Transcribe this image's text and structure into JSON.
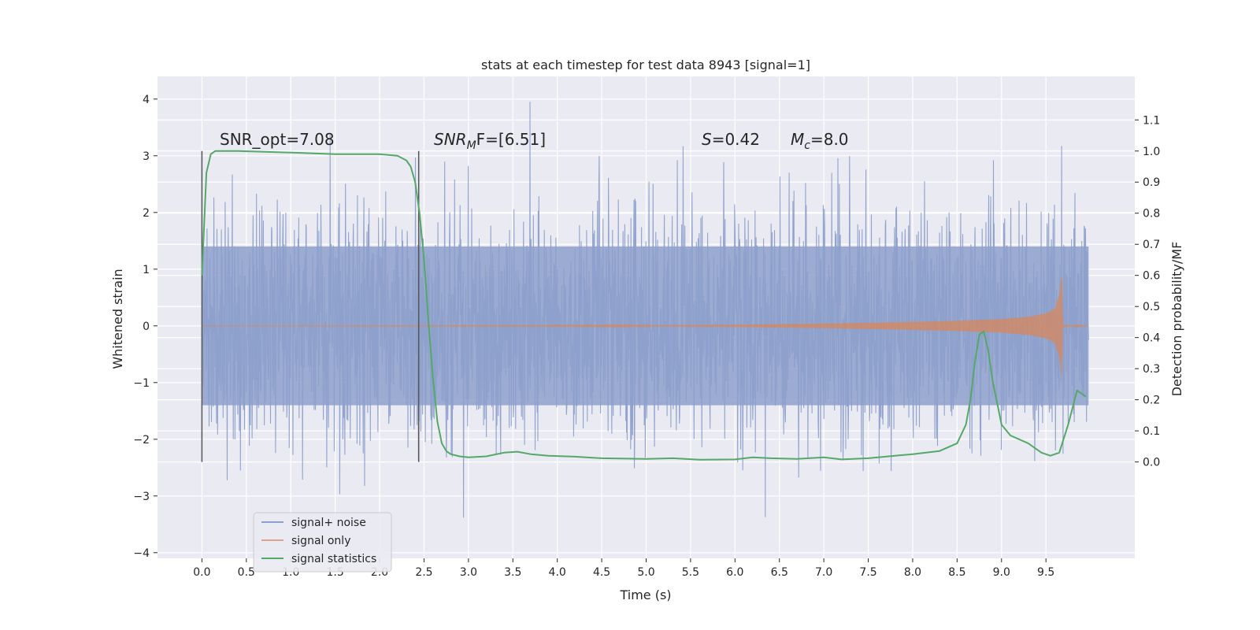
{
  "chart_data": {
    "type": "line",
    "title": "stats at each timestep for test data 8943 [signal=1]",
    "xlabel": "Time (s)",
    "ylabel": "Whitened strain",
    "ylabel_right": "Detection probability/MF",
    "xlim": [
      -0.5,
      10.5
    ],
    "ylim": [
      -4.1,
      4.4
    ],
    "ylim_right": [
      -0.31,
      1.24
    ],
    "x_ticks": [
      "0.0",
      "0.5",
      "1.0",
      "1.5",
      "2.0",
      "2.5",
      "3.0",
      "3.5",
      "4.0",
      "4.5",
      "5.0",
      "5.5",
      "6.0",
      "6.5",
      "7.0",
      "7.5",
      "8.0",
      "8.5",
      "9.0",
      "9.5"
    ],
    "y_ticks": [
      "4",
      "3",
      "2",
      "1",
      "0",
      "−1",
      "−2",
      "−3",
      "−4"
    ],
    "y_right_ticks": [
      "1.1",
      "1.0",
      "0.9",
      "0.8",
      "0.7",
      "0.6",
      "0.5",
      "0.4",
      "0.3",
      "0.2",
      "0.1",
      "0.0"
    ],
    "grid": true,
    "legend_position": "lower-left",
    "annotations": {
      "snr_opt": "SNR_opt=7.08",
      "snr_mf_main": "SNR",
      "snr_mf_sub": "M",
      "snr_mf_rest": "F=[6.51]",
      "s_main": "S",
      "s_rest": "=0.42",
      "mc_main": "M",
      "mc_sub": "c",
      "mc_rest": "=8.0"
    },
    "vlines_x": [
      0.0,
      2.44
    ],
    "noise": {
      "core_amplitude": 1.4,
      "max_spike": 4.05,
      "min_spike": -3.7,
      "x_start": 0.0,
      "x_end": 9.98
    },
    "signal_envelope": {
      "x": [
        0.0,
        4.0,
        5.0,
        6.0,
        7.0,
        8.0,
        8.5,
        9.0,
        9.3,
        9.5,
        9.6,
        9.65,
        9.68,
        9.69,
        9.98
      ],
      "amp": [
        0.0,
        0.005,
        0.01,
        0.02,
        0.04,
        0.07,
        0.09,
        0.12,
        0.16,
        0.22,
        0.3,
        0.55,
        0.9,
        0.02,
        0.0
      ]
    },
    "series": [
      {
        "name": "signal statistics",
        "axis": "right",
        "x": [
          0.0,
          0.05,
          0.1,
          0.15,
          0.2,
          0.4,
          1.0,
          1.5,
          2.0,
          2.2,
          2.3,
          2.35,
          2.4,
          2.45,
          2.5,
          2.55,
          2.6,
          2.65,
          2.7,
          2.75,
          2.8,
          2.9,
          3.0,
          3.2,
          3.4,
          3.55,
          3.7,
          3.9,
          4.2,
          4.5,
          5.0,
          5.3,
          5.6,
          6.0,
          6.2,
          6.4,
          6.7,
          7.0,
          7.2,
          7.5,
          7.8,
          8.0,
          8.3,
          8.5,
          8.6,
          8.65,
          8.7,
          8.75,
          8.8,
          8.85,
          8.9,
          9.0,
          9.1,
          9.3,
          9.45,
          9.55,
          9.65,
          9.75,
          9.85,
          9.95
        ],
        "values": [
          0.6,
          0.93,
          0.99,
          1.0,
          1.0,
          1.0,
          0.995,
          0.99,
          0.99,
          0.985,
          0.97,
          0.95,
          0.9,
          0.8,
          0.65,
          0.45,
          0.27,
          0.13,
          0.06,
          0.035,
          0.025,
          0.018,
          0.015,
          0.018,
          0.03,
          0.033,
          0.025,
          0.02,
          0.017,
          0.012,
          0.01,
          0.012,
          0.007,
          0.008,
          0.015,
          0.012,
          0.01,
          0.015,
          0.008,
          0.012,
          0.02,
          0.025,
          0.035,
          0.06,
          0.12,
          0.2,
          0.32,
          0.41,
          0.42,
          0.36,
          0.26,
          0.12,
          0.085,
          0.06,
          0.03,
          0.02,
          0.03,
          0.12,
          0.23,
          0.21
        ]
      }
    ],
    "legend": [
      {
        "name": "signal+ noise",
        "color": "#8da0cb"
      },
      {
        "name": "signal only",
        "color": "#e0a48c"
      },
      {
        "name": "signal statistics",
        "color": "#55a868"
      }
    ],
    "colors": {
      "plot_bg": "#eaeaf2",
      "grid": "#ffffff",
      "noise": "#8da0cb",
      "signal": "#dd8452",
      "stat": "#55a868",
      "vline": "#555555"
    }
  }
}
